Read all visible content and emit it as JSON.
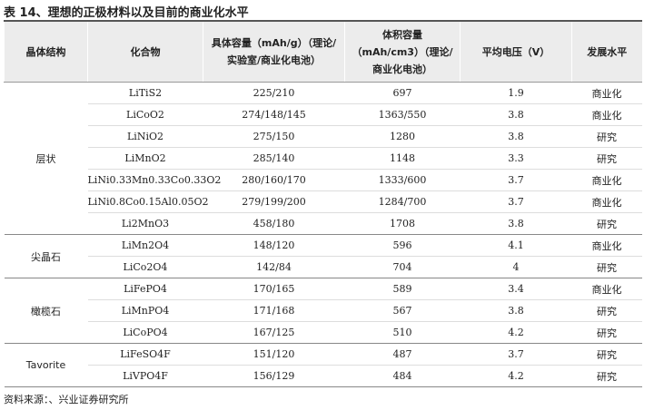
{
  "title": "表 14、理想的正极材料以及目前的商业化水平",
  "table": {
    "headers": [
      "晶体结构",
      "化合物",
      "具体容量（mAh/g）（理论/实验室/商业化电池）",
      "体积容量（mAh/cm3）（理论/商业化电池）",
      "平均电压（V）",
      "发展水平"
    ],
    "groups": [
      {
        "structure": "层状",
        "rows": [
          [
            "LiTiS2",
            "225/210",
            "697",
            "1.9",
            "商业化"
          ],
          [
            "LiCoO2",
            "274/148/145",
            "1363/550",
            "3.8",
            "商业化"
          ],
          [
            "LiNiO2",
            "275/150",
            "1280",
            "3.8",
            "研究"
          ],
          [
            "LiMnO2",
            "285/140",
            "1148",
            "3.3",
            "研究"
          ],
          [
            "LiNi0.33Mn0.33Co0.33O2",
            "280/160/170",
            "1333/600",
            "3.7",
            "商业化"
          ],
          [
            "LiNi0.8Co0.15Al0.05O2",
            "279/199/200",
            "1284/700",
            "3.7",
            "商业化"
          ],
          [
            "Li2MnO3",
            "458/180",
            "1708",
            "3.8",
            "研究"
          ]
        ]
      },
      {
        "structure": "尖晶石",
        "rows": [
          [
            "LiMn2O4",
            "148/120",
            "596",
            "4.1",
            "商业化"
          ],
          [
            "LiCo2O4",
            "142/84",
            "704",
            "4",
            "研究"
          ]
        ]
      },
      {
        "structure": "橄榄石",
        "rows": [
          [
            "LiFePO4",
            "170/165",
            "589",
            "3.4",
            "商业化"
          ],
          [
            "LiMnPO4",
            "171/168",
            "567",
            "3.8",
            "研究"
          ],
          [
            "LiCoPO4",
            "167/125",
            "510",
            "4.2",
            "研究"
          ]
        ]
      },
      {
        "structure": "Tavorite",
        "rows": [
          [
            "LiFeSO4F",
            "151/120",
            "487",
            "3.7",
            "研究"
          ],
          [
            "LiVPO4F",
            "156/129",
            "484",
            "4.2",
            "研究"
          ]
        ]
      }
    ]
  },
  "source": "资料来源：、兴业证券研究所"
}
